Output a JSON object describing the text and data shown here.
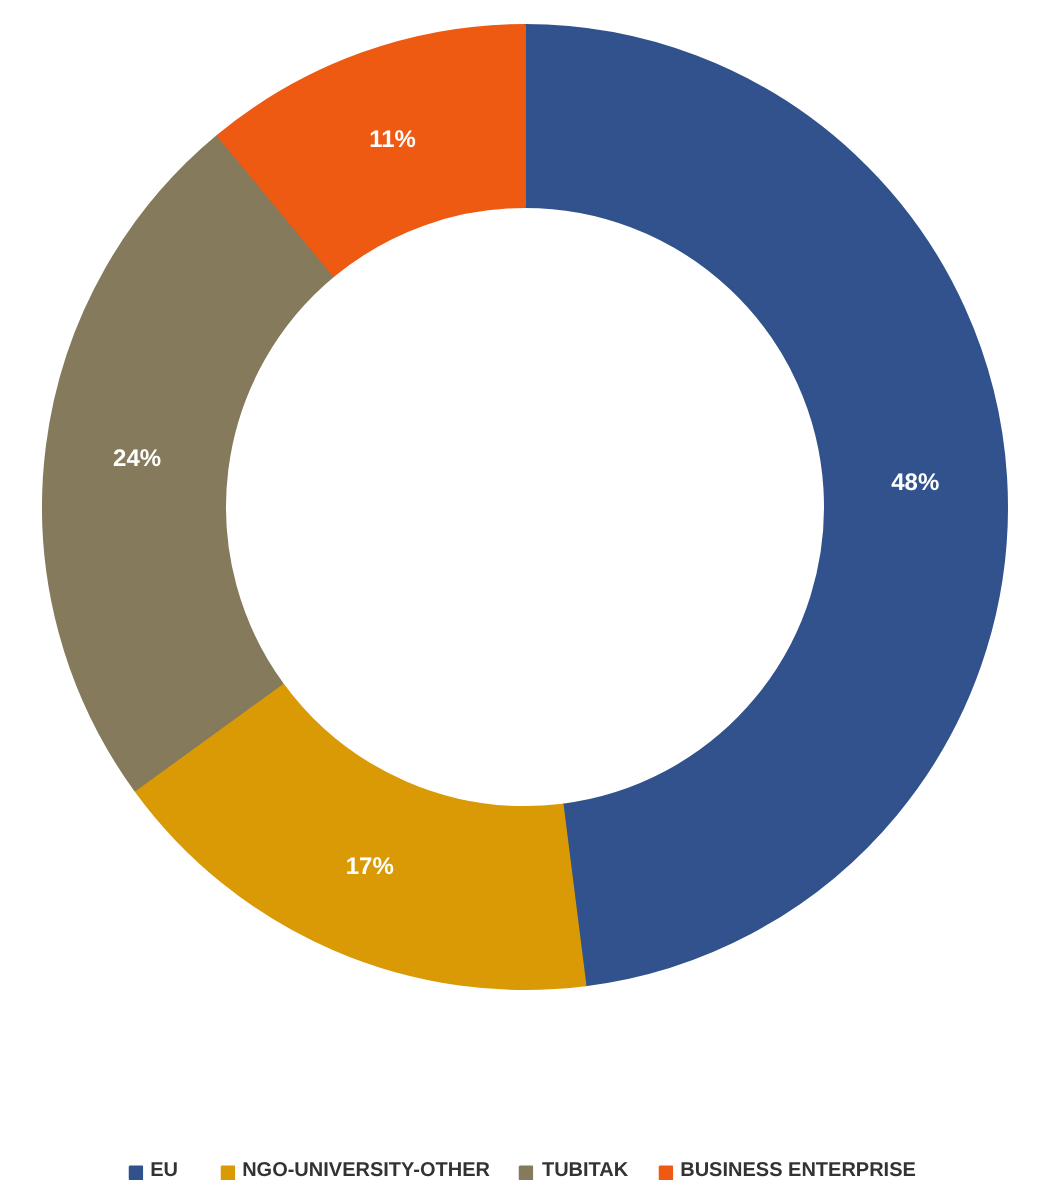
{
  "chart_data": {
    "type": "donut",
    "categories": [
      "EU",
      "NGO-UNIVERSITY-OTHER",
      "TUBITAK",
      "BUSINESS ENTERPRISE"
    ],
    "values": [
      48,
      17,
      24,
      11
    ],
    "colors": [
      "#31528c",
      "#d99a06",
      "#857a5c",
      "#ee5a12"
    ],
    "value_labels": [
      "48%",
      "17%",
      "24%",
      "11%"
    ],
    "legend": "bottom"
  }
}
